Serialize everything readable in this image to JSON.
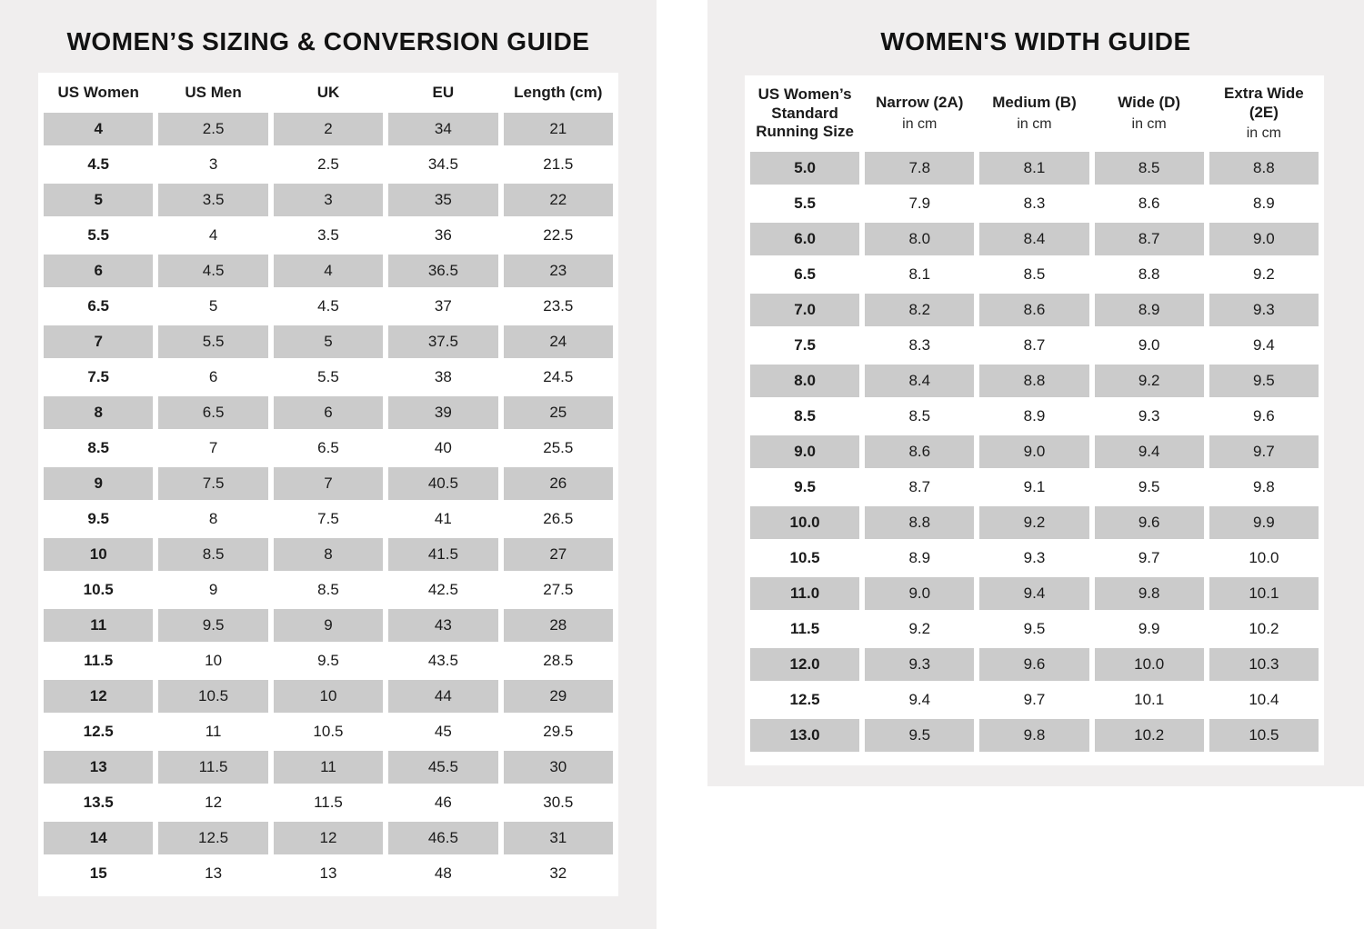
{
  "colors": {
    "panel_bg": "#f0eeee",
    "table_bg": "#ffffff",
    "row_highlight": "#cbcbcb",
    "text": "#1b1b1b"
  },
  "chart_data": [
    {
      "type": "table",
      "title": "WOMEN’S SIZING & CONVERSION GUIDE",
      "columns": [
        {
          "label": "US Women",
          "sub": ""
        },
        {
          "label": "US Men",
          "sub": ""
        },
        {
          "label": "UK",
          "sub": ""
        },
        {
          "label": "EU",
          "sub": ""
        },
        {
          "label": "Length (cm)",
          "sub": ""
        }
      ],
      "rows": [
        [
          "4",
          "2.5",
          "2",
          "34",
          "21"
        ],
        [
          "4.5",
          "3",
          "2.5",
          "34.5",
          "21.5"
        ],
        [
          "5",
          "3.5",
          "3",
          "35",
          "22"
        ],
        [
          "5.5",
          "4",
          "3.5",
          "36",
          "22.5"
        ],
        [
          "6",
          "4.5",
          "4",
          "36.5",
          "23"
        ],
        [
          "6.5",
          "5",
          "4.5",
          "37",
          "23.5"
        ],
        [
          "7",
          "5.5",
          "5",
          "37.5",
          "24"
        ],
        [
          "7.5",
          "6",
          "5.5",
          "38",
          "24.5"
        ],
        [
          "8",
          "6.5",
          "6",
          "39",
          "25"
        ],
        [
          "8.5",
          "7",
          "6.5",
          "40",
          "25.5"
        ],
        [
          "9",
          "7.5",
          "7",
          "40.5",
          "26"
        ],
        [
          "9.5",
          "8",
          "7.5",
          "41",
          "26.5"
        ],
        [
          "10",
          "8.5",
          "8",
          "41.5",
          "27"
        ],
        [
          "10.5",
          "9",
          "8.5",
          "42.5",
          "27.5"
        ],
        [
          "11",
          "9.5",
          "9",
          "43",
          "28"
        ],
        [
          "11.5",
          "10",
          "9.5",
          "43.5",
          "28.5"
        ],
        [
          "12",
          "10.5",
          "10",
          "44",
          "29"
        ],
        [
          "12.5",
          "11",
          "10.5",
          "45",
          "29.5"
        ],
        [
          "13",
          "11.5",
          "11",
          "45.5",
          "30"
        ],
        [
          "13.5",
          "12",
          "11.5",
          "46",
          "30.5"
        ],
        [
          "14",
          "12.5",
          "12",
          "46.5",
          "31"
        ],
        [
          "15",
          "13",
          "13",
          "48",
          "32"
        ]
      ]
    },
    {
      "type": "table",
      "title": "WOMEN'S WIDTH GUIDE",
      "columns": [
        {
          "label": "US Women’s Standard Running Size",
          "sub": ""
        },
        {
          "label": "Narrow (2A)",
          "sub": "in cm"
        },
        {
          "label": "Medium (B)",
          "sub": "in cm"
        },
        {
          "label": "Wide (D)",
          "sub": "in cm"
        },
        {
          "label": "Extra Wide (2E)",
          "sub": "in cm"
        }
      ],
      "rows": [
        [
          "5.0",
          "7.8",
          "8.1",
          "8.5",
          "8.8"
        ],
        [
          "5.5",
          "7.9",
          "8.3",
          "8.6",
          "8.9"
        ],
        [
          "6.0",
          "8.0",
          "8.4",
          "8.7",
          "9.0"
        ],
        [
          "6.5",
          "8.1",
          "8.5",
          "8.8",
          "9.2"
        ],
        [
          "7.0",
          "8.2",
          "8.6",
          "8.9",
          "9.3"
        ],
        [
          "7.5",
          "8.3",
          "8.7",
          "9.0",
          "9.4"
        ],
        [
          "8.0",
          "8.4",
          "8.8",
          "9.2",
          "9.5"
        ],
        [
          "8.5",
          "8.5",
          "8.9",
          "9.3",
          "9.6"
        ],
        [
          "9.0",
          "8.6",
          "9.0",
          "9.4",
          "9.7"
        ],
        [
          "9.5",
          "8.7",
          "9.1",
          "9.5",
          "9.8"
        ],
        [
          "10.0",
          "8.8",
          "9.2",
          "9.6",
          "9.9"
        ],
        [
          "10.5",
          "8.9",
          "9.3",
          "9.7",
          "10.0"
        ],
        [
          "11.0",
          "9.0",
          "9.4",
          "9.8",
          "10.1"
        ],
        [
          "11.5",
          "9.2",
          "9.5",
          "9.9",
          "10.2"
        ],
        [
          "12.0",
          "9.3",
          "9.6",
          "10.0",
          "10.3"
        ],
        [
          "12.5",
          "9.4",
          "9.7",
          "10.1",
          "10.4"
        ],
        [
          "13.0",
          "9.5",
          "9.8",
          "10.2",
          "10.5"
        ]
      ]
    }
  ]
}
